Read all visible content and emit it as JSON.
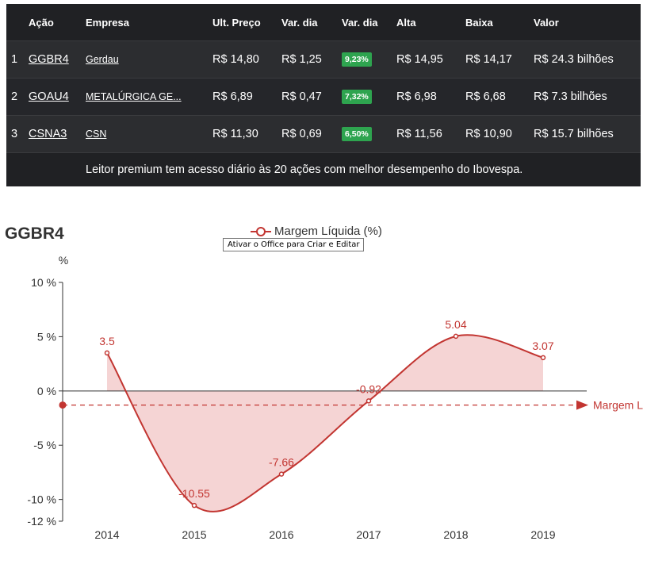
{
  "table": {
    "headers": [
      "Ação",
      "Empresa",
      "Ult. Preço",
      "Var. dia",
      "Var. dia",
      "Alta",
      "Baixa",
      "Valor"
    ],
    "rows": [
      {
        "idx": "1",
        "ticker": "GGBR4",
        "company": "Gerdau",
        "price": "R$ 14,80",
        "change": "R$ 1,25",
        "pct": "9,23%",
        "high": "R$ 14,95",
        "low": "R$ 14,17",
        "value": "R$ 24.3 bilhões"
      },
      {
        "idx": "2",
        "ticker": "GOAU4",
        "company": "METALÚRGICA GE...",
        "price": "R$ 6,89",
        "change": "R$ 0,47",
        "pct": "7,32%",
        "high": "R$ 6,98",
        "low": "R$ 6,68",
        "value": "R$ 7.3 bilhões"
      },
      {
        "idx": "3",
        "ticker": "CSNA3",
        "company": "CSN",
        "price": "R$ 11,30",
        "change": "R$ 0,69",
        "pct": "6,50%",
        "high": "R$ 11,56",
        "low": "R$ 10,90",
        "value": "R$ 15.7 bilhões"
      }
    ],
    "footer": "Leitor premium tem acesso diário às 20 ações com melhor desempenho do Ibovespa.",
    "badge_color": "#2ea44f"
  },
  "tooltip": "Ativar o Office para Criar e Editar",
  "chart_data": {
    "type": "line",
    "title": "GGBR4",
    "ylabel": "%",
    "categories": [
      "2014",
      "2015",
      "2016",
      "2017",
      "2018",
      "2019"
    ],
    "series": [
      {
        "name": "Margem Líquida (%)",
        "values": [
          3.5,
          -10.55,
          -7.66,
          -0.92,
          5.04,
          3.07
        ],
        "labels": [
          "3.5",
          "-10.55",
          "-7.66",
          "-0.92",
          "5.04",
          "3.07"
        ]
      }
    ],
    "y_ticks": [
      {
        "value": 10,
        "label": "10 %"
      },
      {
        "value": 5,
        "label": "5 %"
      },
      {
        "value": 0,
        "label": "0 %"
      },
      {
        "value": -5,
        "label": "-5 %"
      },
      {
        "value": -10,
        "label": "-10 %"
      },
      {
        "value": -12,
        "label": "-12 %"
      }
    ],
    "ylim": [
      -12,
      10
    ],
    "smooth": true,
    "area_fill": true,
    "mark_line": {
      "value": -1.3,
      "label": "Margem L"
    },
    "color": "#c23531",
    "area_color": "#f2c9c9",
    "legend_position": "top"
  }
}
